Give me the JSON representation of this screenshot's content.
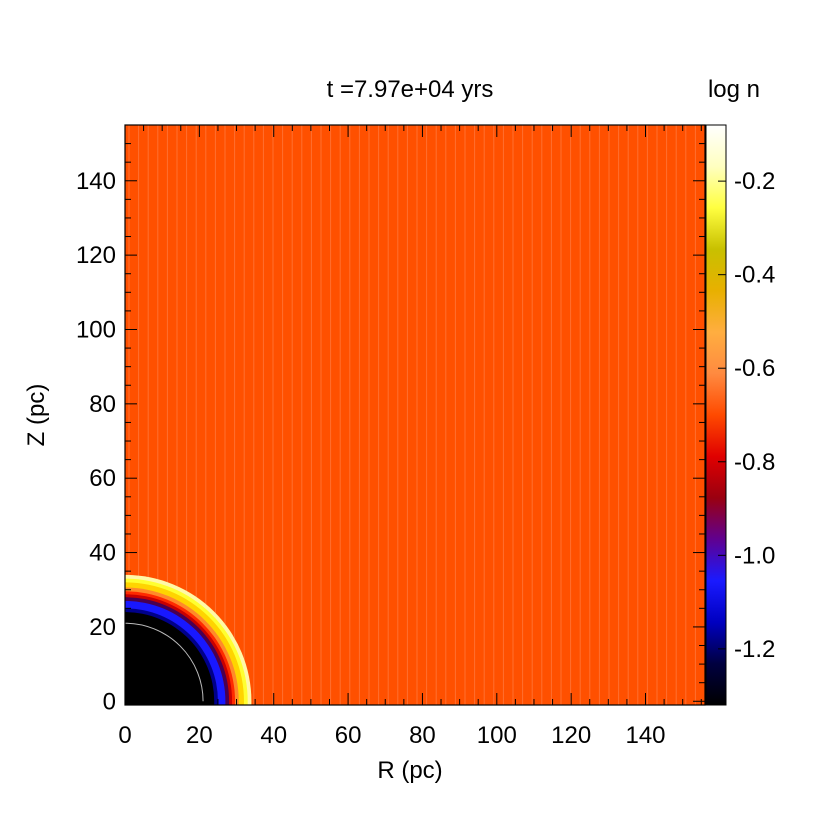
{
  "chart_data": {
    "type": "heatmap",
    "title": "t =7.97e+04 yrs",
    "xlabel": "R (pc)",
    "ylabel": "Z (pc)",
    "xlim": [
      0,
      156
    ],
    "ylim": [
      -1,
      155
    ],
    "xticks": [
      0,
      20,
      40,
      60,
      80,
      100,
      120,
      140
    ],
    "yticks": [
      0,
      20,
      40,
      60,
      80,
      100,
      120,
      140
    ],
    "colorbar": {
      "label": "log n",
      "range": [
        -1.32,
        -0.08
      ],
      "ticks": [
        -0.2,
        -0.4,
        -0.6,
        -0.8,
        -1.0,
        -1.2
      ],
      "tick_labels": [
        "-0.2",
        "-0.4",
        "-0.6",
        "-0.8",
        "-1.0",
        "-1.2"
      ],
      "colors": [
        "#000000",
        "#000040",
        "#0000c0",
        "#1a1aff",
        "#600090",
        "#9a0010",
        "#e00000",
        "#ff4a00",
        "#ff8a40",
        "#ffae40",
        "#e8b000",
        "#c8c000",
        "#ffff40",
        "#ffffc0",
        "#ffffff"
      ]
    },
    "background_log_n": -0.68,
    "background_color": "#ff5000",
    "shell_rings": [
      {
        "radius_pc": 34,
        "color": "#fff8a8"
      },
      {
        "radius_pc": 33,
        "color": "#ffff30"
      },
      {
        "radius_pc": 32,
        "color": "#ffd400"
      },
      {
        "radius_pc": 30.6,
        "color": "#ff8a2a"
      },
      {
        "radius_pc": 29.6,
        "color": "#ff2a00"
      },
      {
        "radius_pc": 28.8,
        "color": "#c80000"
      },
      {
        "radius_pc": 28,
        "color": "#4a0050"
      },
      {
        "radius_pc": 27,
        "color": "#1818ff"
      },
      {
        "radius_pc": 25,
        "color": "#00008a"
      },
      {
        "radius_pc": 24,
        "color": "#000000"
      }
    ],
    "inner_contour_radius_pc": 21
  }
}
